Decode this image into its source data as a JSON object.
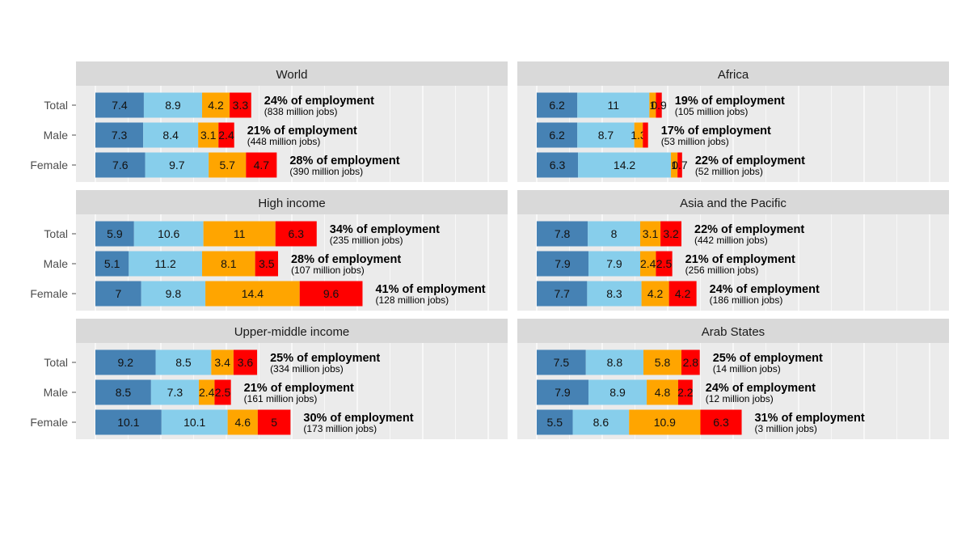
{
  "chart_data": {
    "type": "bar",
    "orientation": "horizontal",
    "stacked": true,
    "grid": true,
    "legend": "none",
    "series_colors": [
      "#4682b4",
      "#87ceeb",
      "#ffa500",
      "#ff0000"
    ],
    "xlim": [
      0,
      60
    ],
    "panels": [
      {
        "title": "World",
        "rows": [
          {
            "category": "Total",
            "values": [
              7.4,
              8.9,
              4.2,
              3.3
            ],
            "labels": [
              "7.4",
              "8.9",
              "4.2",
              "3.3"
            ],
            "share": "24% of employment",
            "jobs": "(838 million jobs)"
          },
          {
            "category": "Male",
            "values": [
              7.3,
              8.4,
              3.1,
              2.4
            ],
            "labels": [
              "7.3",
              "8.4",
              "3.1",
              "2.4"
            ],
            "share": "21% of employment",
            "jobs": "(448 million jobs)"
          },
          {
            "category": "Female",
            "values": [
              7.6,
              9.7,
              5.7,
              4.7
            ],
            "labels": [
              "7.6",
              "9.7",
              "5.7",
              "4.7"
            ],
            "share": "28% of employment",
            "jobs": "(390 million jobs)"
          }
        ]
      },
      {
        "title": "Africa",
        "rows": [
          {
            "category": "Total",
            "values": [
              6.2,
              11,
              1,
              0.9
            ],
            "labels": [
              "6.2",
              "11",
              "1",
              "0.9"
            ],
            "share": "19% of employment",
            "jobs": "(105 million jobs)"
          },
          {
            "category": "Male",
            "values": [
              6.2,
              8.7,
              1.3,
              0.8
            ],
            "labels": [
              "6.2",
              "8.7",
              "1.3",
              ""
            ],
            "share": "17% of employment",
            "jobs": "(53 million jobs)"
          },
          {
            "category": "Female",
            "values": [
              6.3,
              14.2,
              1,
              0.7
            ],
            "labels": [
              "6.3",
              "14.2",
              "1",
              "0.7"
            ],
            "share": "22% of employment",
            "jobs": "(52 million jobs)"
          }
        ]
      },
      {
        "title": "High income",
        "rows": [
          {
            "category": "Total",
            "values": [
              5.9,
              10.6,
              11,
              6.3
            ],
            "labels": [
              "5.9",
              "10.6",
              "11",
              "6.3"
            ],
            "share": "34% of employment",
            "jobs": "(235 million jobs)"
          },
          {
            "category": "Male",
            "values": [
              5.1,
              11.2,
              8.1,
              3.5
            ],
            "labels": [
              "5.1",
              "11.2",
              "8.1",
              "3.5"
            ],
            "share": "28% of employment",
            "jobs": "(107 million jobs)"
          },
          {
            "category": "Female",
            "values": [
              7,
              9.8,
              14.4,
              9.6
            ],
            "labels": [
              "7",
              "9.8",
              "14.4",
              "9.6"
            ],
            "share": "41% of employment",
            "jobs": "(128 million jobs)"
          }
        ]
      },
      {
        "title": "Asia and the Pacific",
        "rows": [
          {
            "category": "Total",
            "values": [
              7.8,
              8,
              3.1,
              3.2
            ],
            "labels": [
              "7.8",
              "8",
              "3.1",
              "3.2"
            ],
            "share": "22% of employment",
            "jobs": "(442 million jobs)"
          },
          {
            "category": "Male",
            "values": [
              7.9,
              7.9,
              2.4,
              2.5
            ],
            "labels": [
              "7.9",
              "7.9",
              "2.4",
              "2.5"
            ],
            "share": "21% of employment",
            "jobs": "(256 million jobs)"
          },
          {
            "category": "Female",
            "values": [
              7.7,
              8.3,
              4.2,
              4.2
            ],
            "labels": [
              "7.7",
              "8.3",
              "4.2",
              "4.2"
            ],
            "share": "24% of employment",
            "jobs": "(186 million jobs)"
          }
        ]
      },
      {
        "title": "Upper-middle income",
        "rows": [
          {
            "category": "Total",
            "values": [
              9.2,
              8.5,
              3.4,
              3.6
            ],
            "labels": [
              "9.2",
              "8.5",
              "3.4",
              "3.6"
            ],
            "share": "25% of employment",
            "jobs": "(334 million jobs)"
          },
          {
            "category": "Male",
            "values": [
              8.5,
              7.3,
              2.4,
              2.5
            ],
            "labels": [
              "8.5",
              "7.3",
              "2.4",
              "2.5"
            ],
            "share": "21% of employment",
            "jobs": "(161 million jobs)"
          },
          {
            "category": "Female",
            "values": [
              10.1,
              10.1,
              4.6,
              5
            ],
            "labels": [
              "10.1",
              "10.1",
              "4.6",
              "5"
            ],
            "share": "30% of employment",
            "jobs": "(173 million jobs)"
          }
        ]
      },
      {
        "title": "Arab States",
        "rows": [
          {
            "category": "Total",
            "values": [
              7.5,
              8.8,
              5.8,
              2.8
            ],
            "labels": [
              "7.5",
              "8.8",
              "5.8",
              "2.8"
            ],
            "share": "25% of employment",
            "jobs": "(14 million jobs)"
          },
          {
            "category": "Male",
            "values": [
              7.9,
              8.9,
              4.8,
              2.2
            ],
            "labels": [
              "7.9",
              "8.9",
              "4.8",
              "2.2"
            ],
            "share": "24% of employment",
            "jobs": "(12 million jobs)"
          },
          {
            "category": "Female",
            "values": [
              5.5,
              8.6,
              10.9,
              6.3
            ],
            "labels": [
              "5.5",
              "8.6",
              "10.9",
              "6.3"
            ],
            "share": "31% of employment",
            "jobs": "(3 million jobs)"
          }
        ]
      }
    ]
  }
}
